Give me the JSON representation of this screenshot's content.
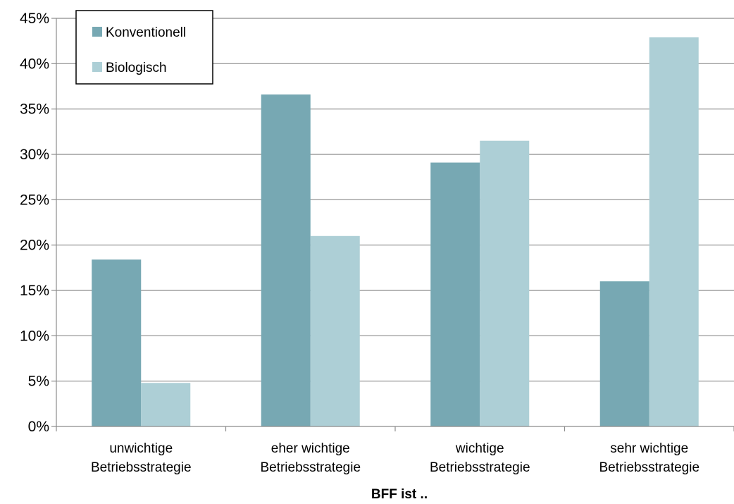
{
  "chart_data": {
    "type": "bar",
    "categories": [
      [
        "unwichtige",
        "Betriebsstrategie"
      ],
      [
        "eher wichtige",
        "Betriebsstrategie"
      ],
      [
        "wichtige",
        "Betriebsstrategie"
      ],
      [
        "sehr wichtige",
        "Betriebsstrategie"
      ]
    ],
    "series": [
      {
        "name": "Konventionell",
        "color": "#77a8b3",
        "values": [
          18.4,
          36.6,
          29.1,
          16.0
        ]
      },
      {
        "name": "Biologisch",
        "color": "#adcfd6",
        "values": [
          4.8,
          21.0,
          31.5,
          42.9
        ]
      }
    ],
    "title": "",
    "xlabel": "BFF ist ..",
    "ylabel": "",
    "ylim": [
      0,
      45
    ],
    "yticks": [
      0,
      5,
      10,
      15,
      20,
      25,
      30,
      35,
      40,
      45
    ],
    "ytick_format": "percent",
    "grid": true,
    "legend_position": "top-left"
  }
}
